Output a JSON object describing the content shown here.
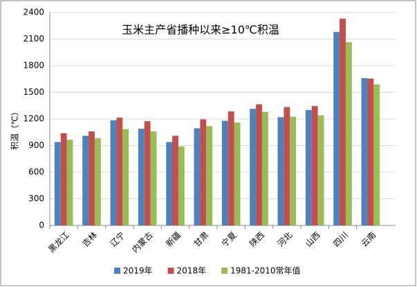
{
  "chart_data": {
    "type": "bar",
    "title": "玉米主产省播种以来≥10℃积温",
    "y_label": "积温（℃）",
    "categories": [
      "黑龙江",
      "吉林",
      "辽宁",
      "内蒙古",
      "新疆",
      "甘肃",
      "宁夏",
      "陕西",
      "河北",
      "山西",
      "四川",
      "云南"
    ],
    "series": [
      {
        "name": "2019年",
        "color": "#4f81bd",
        "values": [
          940,
          1010,
          1185,
          1090,
          940,
          1095,
          1180,
          1315,
          1220,
          1300,
          2180,
          1660
        ]
      },
      {
        "name": "2018年",
        "color": "#c0504d",
        "values": [
          1040,
          1060,
          1215,
          1175,
          1010,
          1195,
          1285,
          1365,
          1335,
          1345,
          2330,
          1655
        ]
      },
      {
        "name": "1981-2010常年值",
        "color": "#9bbb59",
        "values": [
          965,
          985,
          1085,
          1060,
          890,
          1120,
          1160,
          1280,
          1225,
          1240,
          2065,
          1590
        ]
      }
    ],
    "ylim": [
      0,
      2400
    ],
    "yticks": [
      0,
      300,
      600,
      900,
      1200,
      1500,
      1800,
      2100,
      2400
    ],
    "grid": true
  }
}
